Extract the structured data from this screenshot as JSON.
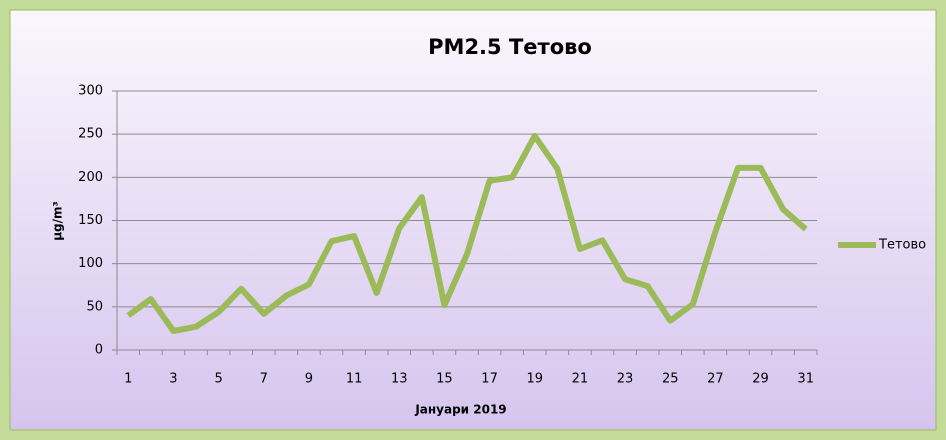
{
  "chart_data": {
    "type": "line",
    "title": "PM2.5 Тетово",
    "x_label": "Јануари 2019",
    "y_label": "µg/m³",
    "categories": [
      1,
      null,
      3,
      null,
      5,
      null,
      7,
      null,
      9,
      null,
      11,
      null,
      13,
      null,
      15,
      null,
      17,
      null,
      19,
      null,
      21,
      null,
      23,
      null,
      25,
      null,
      27,
      null,
      29,
      null,
      31
    ],
    "series": [
      {
        "name": "Тетово",
        "color": "#9bbb59",
        "values": [
          40,
          59,
          22,
          27,
          44,
          71,
          42,
          63,
          76,
          126,
          132,
          66,
          141,
          177,
          52,
          111,
          196,
          200,
          248,
          210,
          117,
          127,
          82,
          74,
          34,
          53,
          137,
          211,
          211,
          163,
          140
        ]
      }
    ],
    "ylim": [
      0,
      300
    ],
    "yticks": [
      0,
      50,
      100,
      150,
      200,
      250,
      300
    ],
    "grid": true,
    "legend": "right"
  }
}
